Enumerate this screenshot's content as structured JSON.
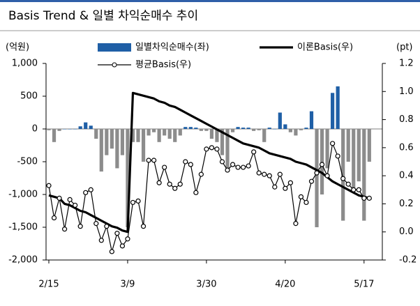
{
  "chart_data": {
    "type": "combo",
    "title": "Basis Trend  & 일별 차익순매수 추이",
    "ylabel": "(억원)",
    "y2label": "(pt)",
    "categories": [
      "2/15",
      null,
      null,
      null,
      null,
      null,
      null,
      null,
      null,
      null,
      null,
      null,
      null,
      null,
      null,
      "3/9",
      null,
      null,
      null,
      null,
      null,
      null,
      null,
      null,
      null,
      null,
      null,
      null,
      null,
      null,
      "3/30",
      null,
      null,
      null,
      null,
      null,
      null,
      null,
      null,
      null,
      null,
      null,
      null,
      null,
      null,
      "4/20",
      null,
      null,
      null,
      null,
      null,
      null,
      null,
      null,
      null,
      null,
      null,
      null,
      null,
      null,
      "5/17",
      null
    ],
    "ylim": [
      -2000,
      1000
    ],
    "yticks": [
      {
        "value": 1000,
        "label": "1,000"
      },
      500,
      0,
      -500,
      {
        "value": -1000,
        "label": "-1,000"
      },
      {
        "value": -1500,
        "label": "-1,500"
      },
      {
        "value": -2000,
        "label": "-2,000"
      }
    ],
    "y2lim": [
      -0.2,
      1.2
    ],
    "y2ticks": [
      1.2,
      {
        "value": 1.0,
        "label": "1.0"
      },
      0.8,
      0.6,
      0.4,
      0.2,
      {
        "value": 0.0,
        "label": "0.0"
      },
      -0.2
    ],
    "series": [
      {
        "name": "일별차익순매수(좌)",
        "type": "bar",
        "color": "#1f5fa6",
        "negative_color": "#8c8c8c",
        "values": [
          -20,
          -200,
          -30,
          0,
          0,
          0,
          40,
          100,
          50,
          -150,
          -650,
          -400,
          -300,
          -600,
          -400,
          -1500,
          -200,
          -200,
          -500,
          -100,
          -50,
          -200,
          -100,
          -150,
          -200,
          -100,
          30,
          30,
          20,
          -30,
          -30,
          -150,
          -200,
          -400,
          -600,
          -50,
          30,
          20,
          20,
          -30,
          -20,
          -200,
          20,
          0,
          250,
          70,
          -50,
          -100,
          -20,
          20,
          270,
          -1500,
          -1000,
          -600,
          550,
          650,
          -1400,
          -500,
          -900,
          -800,
          -1400,
          -500
        ]
      },
      {
        "name": "이론Basis(우)",
        "type": "line",
        "axis": "y2",
        "color": "#000000",
        "values": [
          0.26,
          0.25,
          0.24,
          0.2,
          0.19,
          0.17,
          0.15,
          0.14,
          0.12,
          0.1,
          0.08,
          0.06,
          0.04,
          0.03,
          0.01,
          0.0,
          0.99,
          0.98,
          0.97,
          0.96,
          0.95,
          0.93,
          0.92,
          0.9,
          0.89,
          0.87,
          0.85,
          0.83,
          0.81,
          0.79,
          0.77,
          0.75,
          0.73,
          0.71,
          0.69,
          0.67,
          0.65,
          0.63,
          0.62,
          0.61,
          0.6,
          0.58,
          0.56,
          0.55,
          0.54,
          0.53,
          0.52,
          0.5,
          0.49,
          0.48,
          0.46,
          0.44,
          0.42,
          0.39,
          0.36,
          0.34,
          0.32,
          0.3,
          0.28,
          0.26,
          0.25,
          0.24
        ]
      },
      {
        "name": "평균Basis(우)",
        "type": "line",
        "axis": "y2",
        "marker": "circle",
        "color": "#000000",
        "values": [
          0.33,
          0.1,
          0.24,
          0.02,
          0.23,
          0.19,
          0.04,
          0.28,
          0.3,
          0.06,
          -0.06,
          0.04,
          -0.14,
          -0.01,
          -0.1,
          -0.05,
          0.21,
          0.22,
          0.04,
          0.51,
          0.51,
          0.35,
          0.46,
          0.34,
          0.31,
          0.34,
          0.5,
          0.48,
          0.28,
          0.41,
          0.59,
          0.6,
          0.59,
          0.5,
          0.44,
          0.48,
          0.46,
          0.46,
          0.47,
          0.57,
          0.42,
          0.41,
          0.4,
          0.32,
          0.41,
          0.31,
          0.35,
          0.06,
          0.25,
          0.21,
          0.36,
          0.42,
          0.48,
          0.4,
          0.63,
          0.54,
          0.38,
          0.34,
          0.3,
          0.3,
          0.24,
          0.24
        ]
      }
    ]
  }
}
